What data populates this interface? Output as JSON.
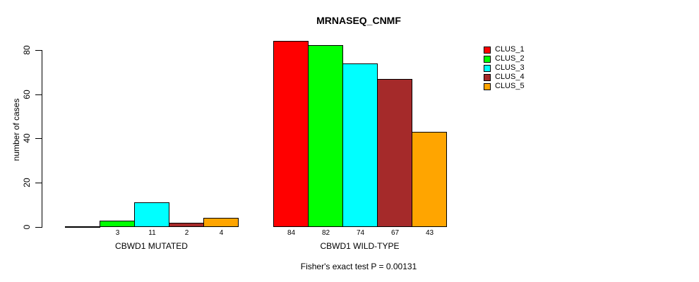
{
  "title": "MRNASEQ_CNMF",
  "annotation": "Fisher's exact test P = 0.00131",
  "chart_data": {
    "type": "bar",
    "title": "MRNASEQ_CNMF",
    "xlabel": "",
    "ylabel": "number of cases",
    "ylim": [
      0,
      80
    ],
    "yticks": [
      0,
      20,
      40,
      60,
      80
    ],
    "grid": false,
    "legend_position": "right",
    "series": [
      {
        "name": "CLUS_1",
        "color": "#FF0000"
      },
      {
        "name": "CLUS_2",
        "color": "#00FF00"
      },
      {
        "name": "CLUS_3",
        "color": "#00FFFF"
      },
      {
        "name": "CLUS_4",
        "color": "#A52A2A"
      },
      {
        "name": "CLUS_5",
        "color": "#FFA500"
      }
    ],
    "groups": [
      {
        "label": "CBWD1 MUTATED",
        "values": [
          0,
          3,
          11,
          2,
          4
        ],
        "bar_labels": [
          "",
          "3",
          "11",
          "2",
          "4"
        ]
      },
      {
        "label": "CBWD1 WILD-TYPE",
        "values": [
          84,
          82,
          74,
          67,
          43
        ],
        "bar_labels": [
          "84",
          "82",
          "74",
          "67",
          "43"
        ]
      }
    ],
    "annotation": "Fisher's exact test P = 0.00131"
  }
}
